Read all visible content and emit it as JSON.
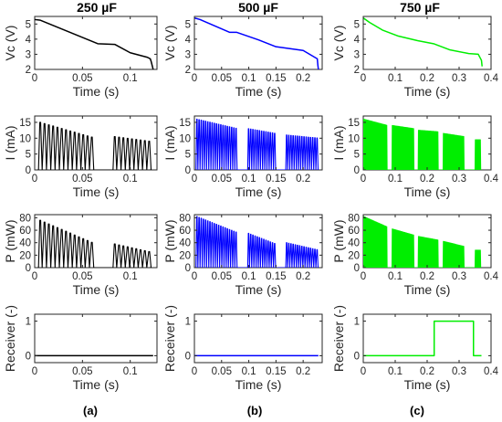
{
  "column_titles": [
    "250 µF",
    "500 µF",
    "750 µF"
  ],
  "panel_letters": [
    "(a)",
    "(b)",
    "(c)"
  ],
  "colors": [
    "#000000",
    "#0000ff",
    "#00ee00"
  ],
  "chart_data": [
    {
      "type": "line",
      "column": 0,
      "row": 0,
      "xlabel": "Time (s)",
      "ylabel": "Vc (V)",
      "xlim": [
        0,
        0.128
      ],
      "ylim": [
        2,
        5.5
      ],
      "xticks": [
        0,
        0.05,
        0.1
      ],
      "yticks": [
        2,
        3,
        4,
        5
      ],
      "series": [
        {
          "x": [
            0,
            0.006,
            0.066,
            0.084,
            0.1,
            0.118,
            0.121,
            0.122,
            0.124
          ],
          "y": [
            5.3,
            5.25,
            3.7,
            3.65,
            3.1,
            2.8,
            2.7,
            2.5,
            2.0
          ]
        }
      ]
    },
    {
      "type": "line",
      "column": 1,
      "row": 0,
      "xlabel": "Time (s)",
      "ylabel": "Vc (V)",
      "xlim": [
        0,
        0.235
      ],
      "ylim": [
        2,
        5.5
      ],
      "xticks": [
        0,
        0.05,
        0.1,
        0.15,
        0.2
      ],
      "yticks": [
        2,
        3,
        4,
        5
      ],
      "series": [
        {
          "x": [
            0,
            0.01,
            0.065,
            0.078,
            0.118,
            0.15,
            0.2,
            0.226,
            0.227,
            0.228
          ],
          "y": [
            5.4,
            5.3,
            4.45,
            4.45,
            3.95,
            3.5,
            3.25,
            2.7,
            2.3,
            2.0
          ]
        }
      ]
    },
    {
      "type": "line",
      "column": 2,
      "row": 0,
      "xlabel": "Time (s)",
      "ylabel": "Vc (V)",
      "xlim": [
        0,
        0.4
      ],
      "ylim": [
        2,
        5.5
      ],
      "xticks": [
        0,
        0.1,
        0.2,
        0.3,
        0.4
      ],
      "yticks": [
        2,
        3,
        4,
        5
      ],
      "series": [
        {
          "x": [
            0,
            0.02,
            0.06,
            0.11,
            0.17,
            0.22,
            0.27,
            0.33,
            0.36,
            0.37,
            0.372
          ],
          "y": [
            5.4,
            5.1,
            4.6,
            4.2,
            3.9,
            3.7,
            3.3,
            3.05,
            3.0,
            2.6,
            2.2
          ]
        }
      ]
    },
    {
      "type": "line",
      "column": 0,
      "row": 1,
      "xlabel": "Time (s)",
      "ylabel": "I (mA)",
      "xlim": [
        0,
        0.128
      ],
      "ylim": [
        0,
        17
      ],
      "xticks": [
        0,
        0.05,
        0.1
      ],
      "yticks": [
        0,
        5,
        10,
        15
      ],
      "bursts": [
        {
          "t0": 0.004,
          "t1": 0.062,
          "peak0": 15,
          "peak1": 10,
          "period": 0.0045
        },
        {
          "t0": 0.082,
          "t1": 0.12,
          "peak0": 10.5,
          "peak1": 9,
          "period": 0.0045
        }
      ]
    },
    {
      "type": "line",
      "column": 1,
      "row": 1,
      "xlabel": "Time (s)",
      "ylabel": "I (mA)",
      "xlim": [
        0,
        0.235
      ],
      "ylim": [
        0,
        17
      ],
      "xticks": [
        0,
        0.05,
        0.1,
        0.15,
        0.2
      ],
      "yticks": [
        0,
        5,
        10,
        15
      ],
      "bursts": [
        {
          "t0": 0.003,
          "t1": 0.078,
          "peak0": 16,
          "peak1": 13,
          "period": 0.004
        },
        {
          "t0": 0.098,
          "t1": 0.148,
          "peak0": 13,
          "peak1": 11.5,
          "period": 0.004
        },
        {
          "t0": 0.168,
          "t1": 0.228,
          "peak0": 11,
          "peak1": 10,
          "period": 0.004
        }
      ]
    },
    {
      "type": "line",
      "column": 2,
      "row": 1,
      "xlabel": "Time (s)",
      "ylabel": "I (mA)",
      "xlim": [
        0,
        0.4
      ],
      "ylim": [
        0,
        17
      ],
      "xticks": [
        0,
        0.1,
        0.2,
        0.3,
        0.4
      ],
      "yticks": [
        0,
        5,
        10,
        15
      ],
      "bursts": [
        {
          "t0": 0.0,
          "t1": 0.075,
          "peak0": 16,
          "peak1": 14,
          "period": 0.003
        },
        {
          "t0": 0.09,
          "t1": 0.158,
          "peak0": 14,
          "peak1": 13,
          "period": 0.003
        },
        {
          "t0": 0.172,
          "t1": 0.235,
          "peak0": 12.5,
          "peak1": 12,
          "period": 0.003
        },
        {
          "t0": 0.25,
          "t1": 0.315,
          "peak0": 11.5,
          "peak1": 10.5,
          "period": 0.003
        },
        {
          "t0": 0.35,
          "t1": 0.368,
          "peak0": 9.5,
          "peak1": 9.5,
          "period": 0.003
        }
      ]
    },
    {
      "type": "line",
      "column": 0,
      "row": 2,
      "xlabel": "Time (s)",
      "ylabel": "P (mW)",
      "xlim": [
        0,
        0.128
      ],
      "ylim": [
        0,
        85
      ],
      "xticks": [
        0,
        0.05,
        0.1
      ],
      "yticks": [
        0,
        20,
        40,
        60,
        80
      ],
      "bursts": [
        {
          "t0": 0.004,
          "t1": 0.062,
          "peak0": 76,
          "peak1": 38,
          "period": 0.0045
        },
        {
          "t0": 0.082,
          "t1": 0.12,
          "peak0": 38,
          "peak1": 25,
          "period": 0.0045
        }
      ]
    },
    {
      "type": "line",
      "column": 1,
      "row": 2,
      "xlabel": "Time (s)",
      "ylabel": "P (mW)",
      "xlim": [
        0,
        0.235
      ],
      "ylim": [
        0,
        85
      ],
      "xticks": [
        0,
        0.05,
        0.1,
        0.15,
        0.2
      ],
      "yticks": [
        0,
        20,
        40,
        60,
        80
      ],
      "bursts": [
        {
          "t0": 0.003,
          "t1": 0.078,
          "peak0": 82,
          "peak1": 56,
          "period": 0.004
        },
        {
          "t0": 0.098,
          "t1": 0.148,
          "peak0": 55,
          "peak1": 38,
          "period": 0.004
        },
        {
          "t0": 0.168,
          "t1": 0.228,
          "peak0": 40,
          "peak1": 28,
          "period": 0.004
        }
      ]
    },
    {
      "type": "line",
      "column": 2,
      "row": 2,
      "xlabel": "Time (s)",
      "ylabel": "P (mW)",
      "xlim": [
        0,
        0.4
      ],
      "ylim": [
        0,
        85
      ],
      "xticks": [
        0,
        0.1,
        0.2,
        0.3,
        0.4
      ],
      "yticks": [
        0,
        20,
        40,
        60,
        80
      ],
      "bursts": [
        {
          "t0": 0.0,
          "t1": 0.075,
          "peak0": 82,
          "peak1": 65,
          "period": 0.003
        },
        {
          "t0": 0.09,
          "t1": 0.158,
          "peak0": 62,
          "peak1": 52,
          "period": 0.003
        },
        {
          "t0": 0.172,
          "t1": 0.235,
          "peak0": 50,
          "peak1": 44,
          "period": 0.003
        },
        {
          "t0": 0.25,
          "t1": 0.315,
          "peak0": 42,
          "peak1": 34,
          "period": 0.003
        },
        {
          "t0": 0.35,
          "t1": 0.368,
          "peak0": 28,
          "peak1": 28,
          "period": 0.003
        }
      ]
    },
    {
      "type": "line",
      "column": 0,
      "row": 3,
      "xlabel": "Time (s)",
      "ylabel": "Receiver (-)",
      "xlim": [
        0,
        0.128
      ],
      "ylim": [
        -0.2,
        1.2
      ],
      "xticks": [
        0,
        0.05,
        0.1
      ],
      "yticks": [
        0,
        1
      ],
      "series": [
        {
          "x": [
            0,
            0.124
          ],
          "y": [
            0,
            0
          ]
        }
      ]
    },
    {
      "type": "line",
      "column": 1,
      "row": 3,
      "xlabel": "Time (s)",
      "ylabel": "Receiver (-)",
      "xlim": [
        0,
        0.235
      ],
      "ylim": [
        -0.2,
        1.2
      ],
      "xticks": [
        0,
        0.05,
        0.1,
        0.15,
        0.2
      ],
      "yticks": [
        0,
        1
      ],
      "series": [
        {
          "x": [
            0,
            0.228
          ],
          "y": [
            0,
            0
          ]
        }
      ]
    },
    {
      "type": "line",
      "column": 2,
      "row": 3,
      "xlabel": "Time (s)",
      "ylabel": "Receiver (-)",
      "xlim": [
        0,
        0.4
      ],
      "ylim": [
        -0.2,
        1.2
      ],
      "xticks": [
        0,
        0.1,
        0.2,
        0.3,
        0.4
      ],
      "yticks": [
        0,
        1
      ],
      "series": [
        {
          "x": [
            0,
            0.222,
            0.222,
            0.345,
            0.345,
            0.37
          ],
          "y": [
            0,
            0,
            1,
            1,
            0,
            0
          ]
        }
      ]
    }
  ]
}
